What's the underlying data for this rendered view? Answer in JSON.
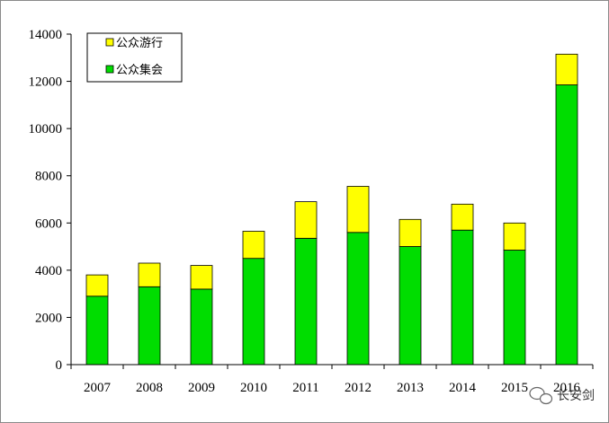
{
  "chart_data": {
    "type": "bar",
    "stacked": true,
    "categories": [
      "2007",
      "2008",
      "2009",
      "2010",
      "2011",
      "2012",
      "2013",
      "2014",
      "2015",
      "2016"
    ],
    "series": [
      {
        "name": "公众集会",
        "color": "#00dd00",
        "values": [
          2900,
          3300,
          3200,
          4500,
          5350,
          5600,
          5000,
          5700,
          4850,
          11850
        ]
      },
      {
        "name": "公众游行",
        "color": "#ffff00",
        "values": [
          900,
          1000,
          1000,
          1150,
          1550,
          1950,
          1150,
          1100,
          1150,
          1300
        ]
      }
    ],
    "ylim": [
      0,
      14000
    ],
    "yticks": [
      "0",
      "2000",
      "4000",
      "6000",
      "8000",
      "10000",
      "12000",
      "14000"
    ],
    "legend_position": "top-left",
    "grid": false,
    "legend": [
      {
        "label": "公众游行",
        "color": "#ffff00"
      },
      {
        "label": "公众集会",
        "color": "#00dd00"
      }
    ]
  },
  "watermark": {
    "text": "长安剑"
  }
}
